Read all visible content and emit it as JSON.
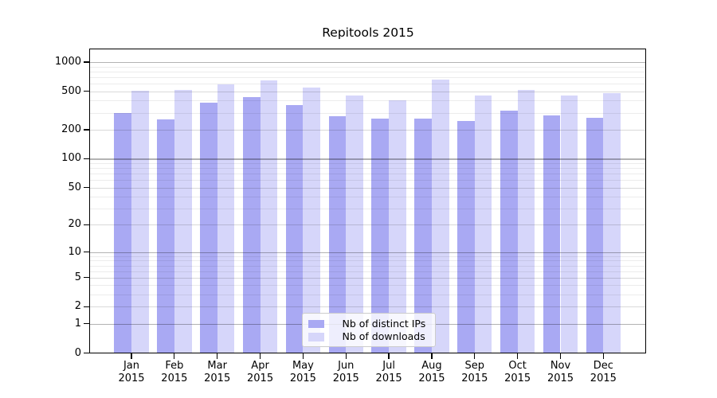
{
  "title": "Repitools 2015",
  "chart_data": {
    "type": "bar",
    "title": "Repitools 2015",
    "categories": [
      "Jan 2015",
      "Feb 2015",
      "Mar 2015",
      "Apr 2015",
      "May 2015",
      "Jun 2015",
      "Jul 2015",
      "Aug 2015",
      "Sep 2015",
      "Oct 2015",
      "Nov 2015",
      "Dec 2015"
    ],
    "series": [
      {
        "name": "Nb of distinct IPs",
        "color": "#a9a9f3",
        "values": [
          300,
          258,
          383,
          435,
          360,
          274,
          261,
          261,
          248,
          315,
          283,
          265
        ]
      },
      {
        "name": "Nb of downloads",
        "color": "#d6d6fa",
        "values": [
          502,
          515,
          585,
          650,
          542,
          454,
          405,
          655,
          454,
          515,
          454,
          481
        ]
      }
    ],
    "yscale": "log1p",
    "y_ticks": [
      0,
      1,
      2,
      5,
      10,
      20,
      50,
      100,
      200,
      500,
      1000
    ],
    "ylim": [
      0,
      1400
    ],
    "grid": true,
    "legend_position": "lower-center"
  },
  "colors": {
    "bar_dark": "#a9a9f3",
    "bar_light": "#d6d6fa",
    "grid_power10": "#b3b3b3",
    "grid_labeled": "#d9d9d9",
    "grid_minor": "#ececec",
    "axis": "#000000",
    "background": "#ffffff"
  }
}
